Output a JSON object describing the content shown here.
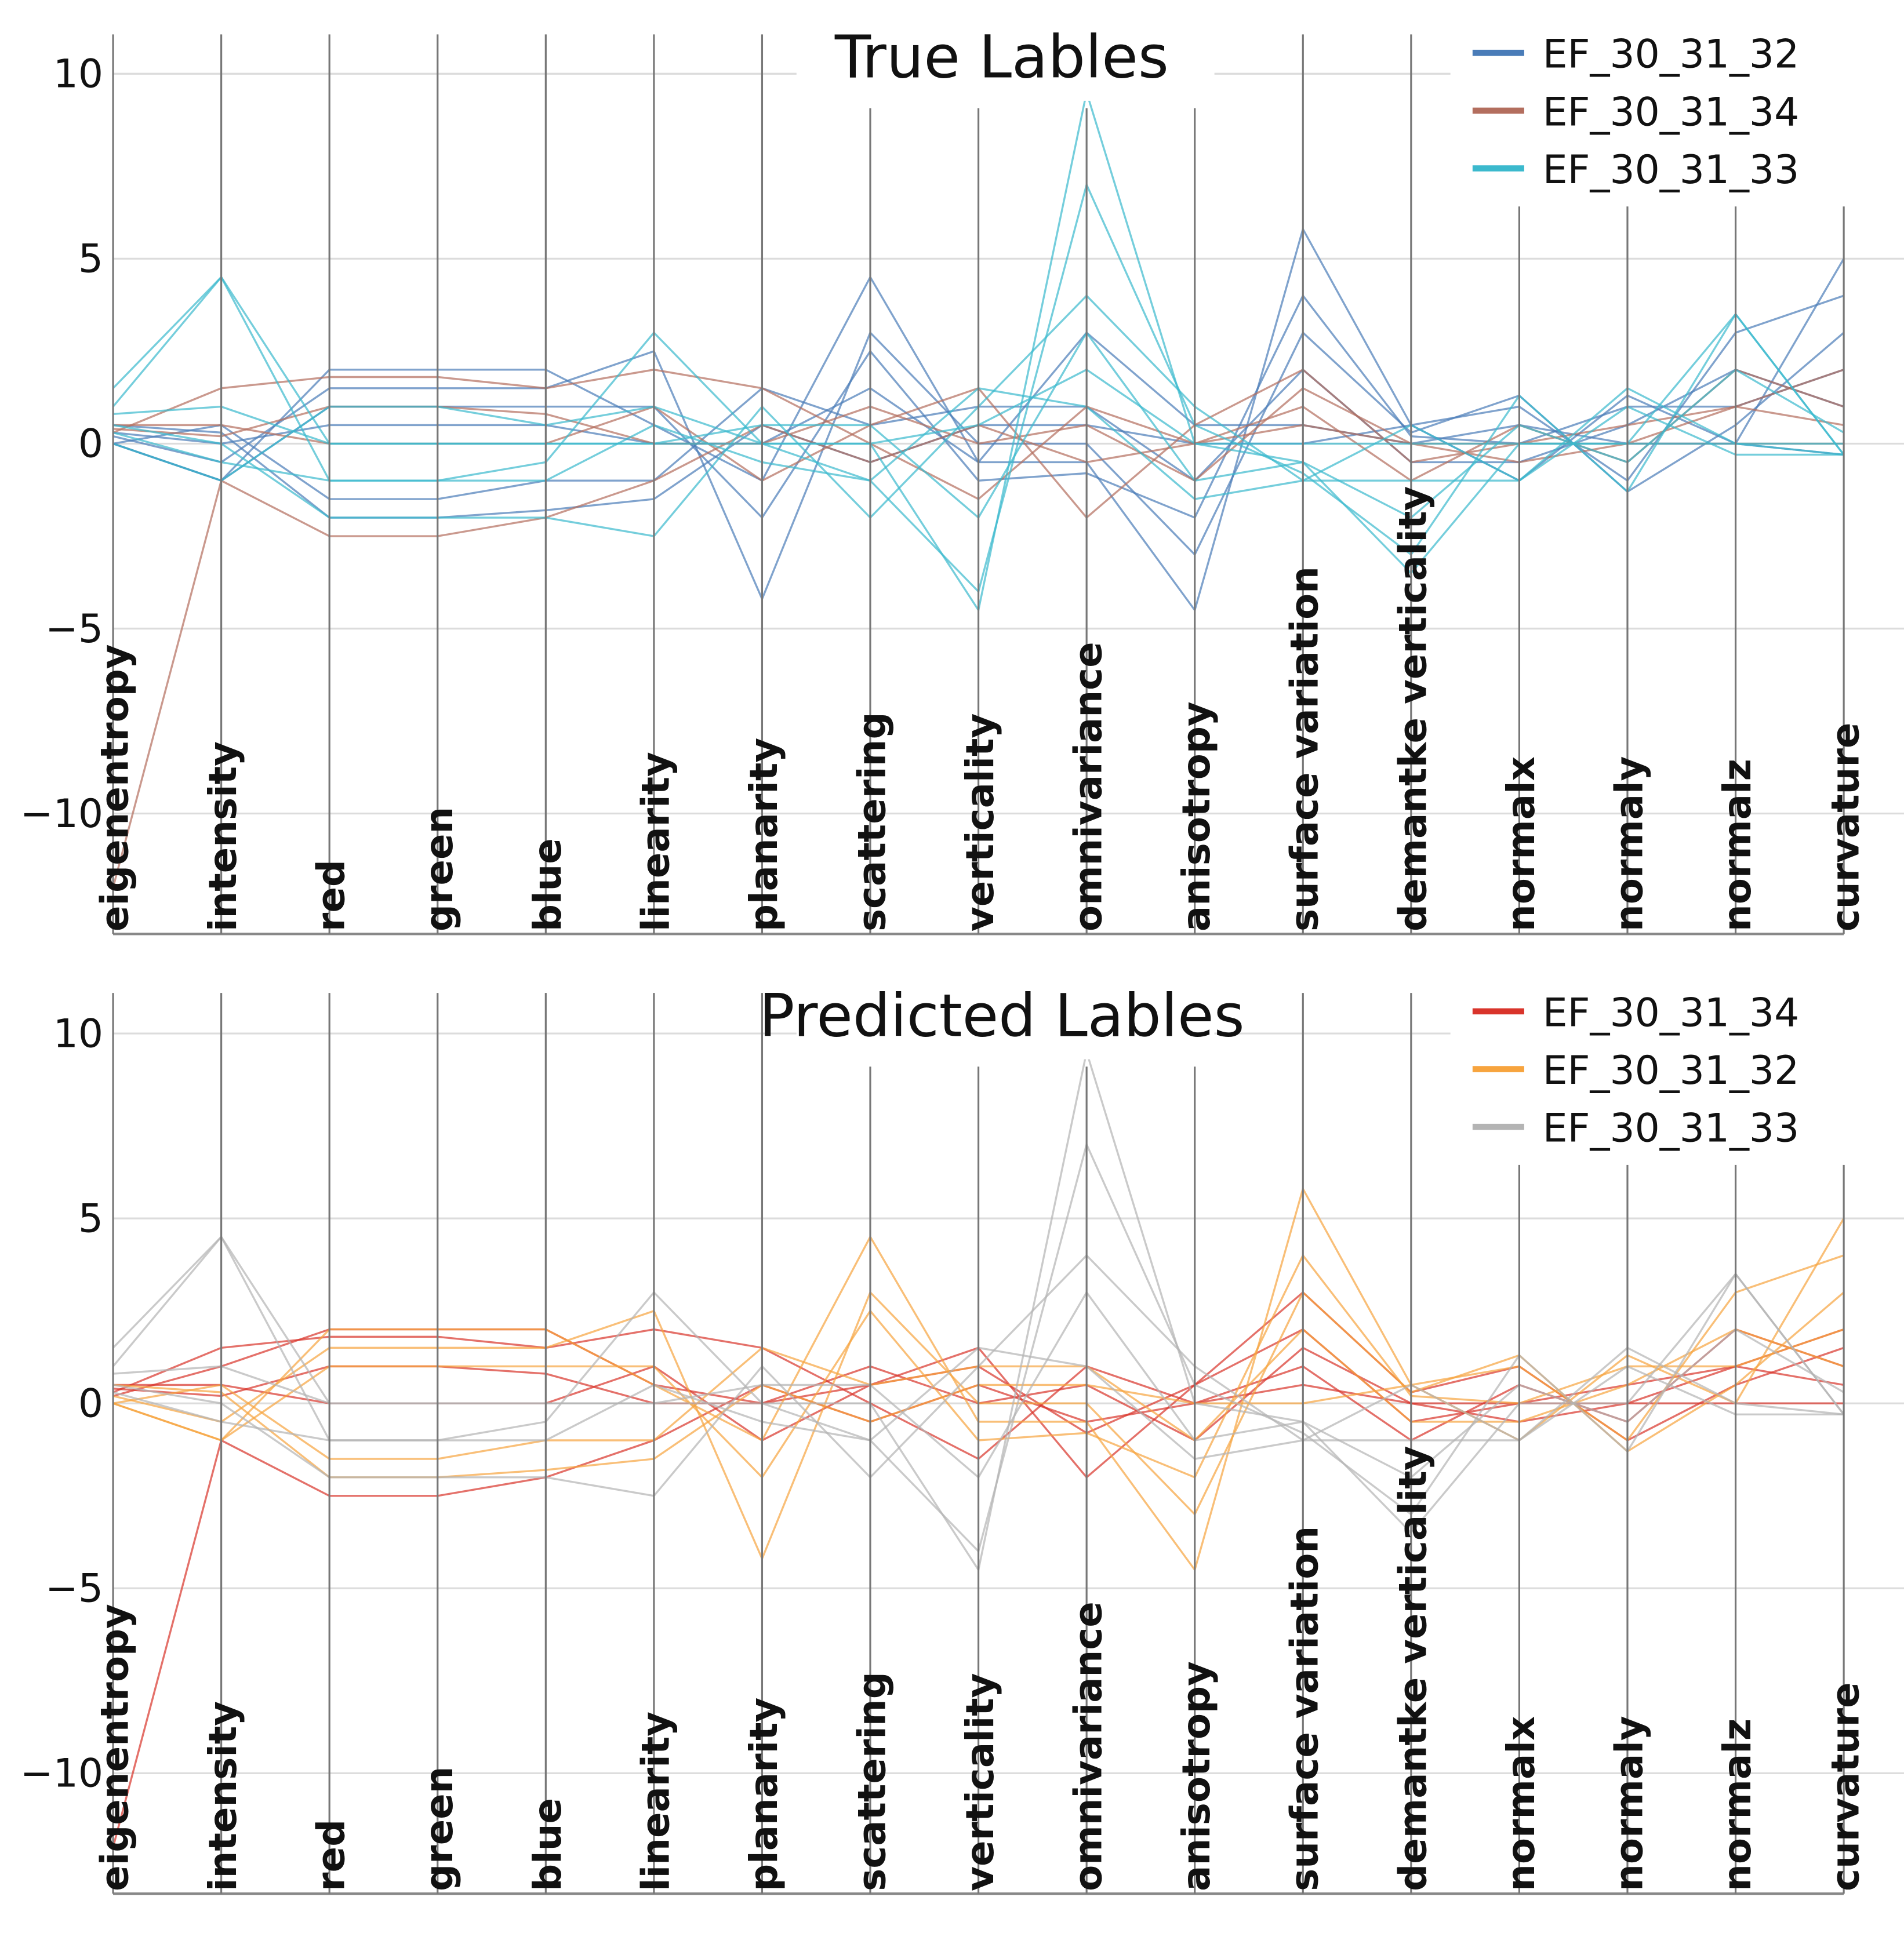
{
  "chart_data": [
    {
      "type": "parallel-coordinates",
      "title": "True Lables",
      "axes": [
        "eigenentropy",
        "intensity",
        "red",
        "green",
        "blue",
        "linearity",
        "planarity",
        "scattering",
        "verticality",
        "omnivariance",
        "anisotropy",
        "surface variation",
        "demantke verticality",
        "normalx",
        "normaly",
        "normalz",
        "curvature"
      ],
      "ylim": [
        -13.3,
        11
      ],
      "yticks": [
        10,
        5,
        0,
        -5,
        -10
      ],
      "ytick_labels": [
        "10",
        "5",
        "0",
        "−5",
        "−10"
      ],
      "grid": true,
      "legend_position": "top-right",
      "series": [
        {
          "name": "EF_30_31_32",
          "color": "#4a7cb8",
          "lines": [
            [
              0,
              -1,
              2,
              2,
              2,
              0.5,
              -1,
              4.5,
              -0.5,
              -0.5,
              -4.5,
              5.8,
              0.5,
              -1,
              1.3,
              0,
              5
            ],
            [
              0.2,
              -0.5,
              1.5,
              1.5,
              1.5,
              2.5,
              -4.2,
              3,
              0,
              0,
              -3,
              3,
              0.3,
              1.3,
              -1.3,
              0.5,
              3
            ],
            [
              0,
              0.5,
              -1.5,
              -1.5,
              -1,
              -1,
              1.5,
              0.5,
              1,
              1,
              -1,
              2,
              -0.5,
              -0.5,
              0.5,
              2,
              1
            ],
            [
              0.3,
              0,
              0.5,
              0.5,
              0.5,
              0,
              0,
              1.5,
              -0.5,
              3,
              0.5,
              0.5,
              0,
              0.5,
              0,
              0,
              -0.3
            ],
            [
              0,
              -1,
              1,
              1,
              1,
              1,
              -2,
              2.5,
              -1,
              -0.8,
              -2,
              4,
              0.2,
              0,
              1,
              1,
              2
            ],
            [
              0.5,
              0.3,
              -2,
              -2,
              -1.8,
              -1.5,
              0.5,
              -0.5,
              0.5,
              0.5,
              0,
              0,
              0.5,
              1,
              -1,
              3,
              4
            ]
          ]
        },
        {
          "name": "EF_30_31_34",
          "color": "#b36e5e",
          "lines": [
            [
              0.5,
              0.5,
              0,
              0,
              0,
              1,
              -1,
              0.5,
              1.5,
              -2,
              0.5,
              2,
              -0.5,
              0,
              0.5,
              1,
              0.5
            ],
            [
              0.3,
              1.5,
              1.8,
              1.8,
              1.5,
              2,
              1.5,
              0,
              -1.5,
              1,
              0,
              1,
              -1,
              0.5,
              -0.5,
              2,
              1
            ],
            [
              -12,
              -1,
              -2.5,
              -2.5,
              -2,
              -1,
              0.5,
              -0.5,
              0.5,
              -0.5,
              0,
              0.5,
              0,
              0,
              0,
              0,
              0
            ],
            [
              0.4,
              0.2,
              1,
              1,
              0.8,
              0,
              0,
              1,
              0,
              0.5,
              -1,
              1.5,
              0,
              -0.5,
              0,
              1,
              2
            ]
          ]
        },
        {
          "name": "EF_30_31_33",
          "color": "#3bb9cd",
          "lines": [
            [
              1.5,
              4.5,
              0,
              0,
              0,
              0,
              0,
              0,
              -4.5,
              9.5,
              0,
              -0.5,
              -3.5,
              0,
              0,
              3.5,
              -0.3
            ],
            [
              1,
              4.5,
              -1,
              -1,
              -0.5,
              3,
              0,
              -1,
              -4,
              7,
              0.5,
              -0.8,
              -3,
              1.3,
              -1.3,
              3.5,
              -0.3
            ],
            [
              0.5,
              0,
              -2,
              -2,
              -2,
              -2.5,
              1,
              -2,
              1,
              4,
              1,
              -1,
              -1,
              -1,
              1.5,
              0,
              -0.3
            ],
            [
              0,
              -1,
              1,
              1,
              0.5,
              1,
              0,
              0,
              0.5,
              2,
              0,
              0,
              0,
              0,
              0,
              0,
              0
            ],
            [
              0.8,
              1,
              0,
              0,
              0,
              0,
              0.5,
              0.5,
              -2,
              3,
              -1,
              -0.5,
              -2,
              0.5,
              -0.5,
              2,
              0.3
            ],
            [
              0.3,
              -0.5,
              -1,
              -1,
              -1,
              0.5,
              -0.5,
              -1,
              1.5,
              1,
              -1.5,
              -1,
              0.5,
              -1,
              1,
              -0.3,
              -0.3
            ]
          ]
        }
      ]
    },
    {
      "type": "parallel-coordinates",
      "title": "Predicted Lables",
      "axes": [
        "eigenentropy",
        "intensity",
        "red",
        "green",
        "blue",
        "linearity",
        "planarity",
        "scattering",
        "verticality",
        "omnivariance",
        "anisotropy",
        "surface variation",
        "demantke verticality",
        "normalx",
        "normaly",
        "normalz",
        "curvature"
      ],
      "ylim": [
        -13.3,
        11
      ],
      "yticks": [
        10,
        5,
        0,
        -5,
        -10
      ],
      "ytick_labels": [
        "10",
        "5",
        "0",
        "−5",
        "−10"
      ],
      "grid": true,
      "legend_position": "top-right",
      "series": [
        {
          "name": "EF_30_31_34",
          "color": "#d9342b",
          "lines": [
            [
              0.5,
              0.5,
              0,
              0,
              0,
              1,
              -1,
              0.5,
              1.5,
              -2,
              0.5,
              2,
              -0.5,
              0,
              0.5,
              1,
              0.5
            ],
            [
              0.3,
              1.5,
              1.8,
              1.8,
              1.5,
              2,
              1.5,
              0,
              -1.5,
              1,
              0,
              1,
              -1,
              0.5,
              -0.5,
              2,
              1
            ],
            [
              -12,
              -1,
              -2.5,
              -2.5,
              -2,
              -1,
              0.5,
              -0.5,
              0.5,
              -0.5,
              0,
              0.5,
              0,
              0,
              0,
              0,
              0
            ],
            [
              0.4,
              0.2,
              1,
              1,
              0.8,
              0,
              0,
              1,
              0,
              0.5,
              -1,
              1.5,
              0,
              -0.5,
              0,
              1,
              2
            ],
            [
              0.2,
              1,
              2,
              2,
              2,
              0.5,
              0,
              0.5,
              1,
              -0.8,
              0.5,
              3,
              0.3,
              1,
              -1,
              0.5,
              1.5
            ]
          ]
        },
        {
          "name": "EF_30_31_32",
          "color": "#f7a43e",
          "lines": [
            [
              0,
              -1,
              2,
              2,
              2,
              0.5,
              -1,
              4.5,
              -0.5,
              -0.5,
              -4.5,
              5.8,
              0.5,
              -1,
              1.3,
              0,
              5
            ],
            [
              0.2,
              -0.5,
              1.5,
              1.5,
              1.5,
              2.5,
              -4.2,
              3,
              0,
              0,
              -3,
              3,
              0.3,
              1.3,
              -1.3,
              0.5,
              3
            ],
            [
              0,
              0.5,
              -1.5,
              -1.5,
              -1,
              -1,
              1.5,
              0.5,
              1,
              1,
              -1,
              2,
              -0.5,
              -0.5,
              0.5,
              2,
              1
            ],
            [
              0,
              -1,
              1,
              1,
              1,
              1,
              -2,
              2.5,
              -1,
              -0.8,
              -2,
              4,
              0.2,
              0,
              1,
              1,
              2
            ],
            [
              0.5,
              0.3,
              -2,
              -2,
              -1.8,
              -1.5,
              0.5,
              -0.5,
              0.5,
              0.5,
              0,
              0,
              0.5,
              1,
              -1,
              3,
              4
            ]
          ]
        },
        {
          "name": "EF_30_31_33",
          "color": "#b4b4b4",
          "lines": [
            [
              1.5,
              4.5,
              0,
              0,
              0,
              0,
              0,
              0,
              -4.5,
              9.5,
              0,
              -0.5,
              -3.5,
              0,
              0,
              3.5,
              -0.3
            ],
            [
              1,
              4.5,
              -1,
              -1,
              -0.5,
              3,
              0,
              -1,
              -4,
              7,
              0.5,
              -0.8,
              -3,
              1.3,
              -1.3,
              3.5,
              -0.3
            ],
            [
              0.5,
              0,
              -2,
              -2,
              -2,
              -2.5,
              1,
              -2,
              1,
              4,
              1,
              -1,
              -1,
              -1,
              1.5,
              0,
              -0.3
            ],
            [
              0.8,
              1,
              0,
              0,
              0,
              0,
              0.5,
              0.5,
              -2,
              3,
              -1,
              -0.5,
              -2,
              0.5,
              -0.5,
              2,
              0.3
            ],
            [
              0.3,
              -0.5,
              -1,
              -1,
              -1,
              0.5,
              -0.5,
              -1,
              1.5,
              1,
              -1.5,
              -1,
              0.5,
              -1,
              1,
              -0.3,
              -0.3
            ]
          ]
        }
      ]
    }
  ]
}
